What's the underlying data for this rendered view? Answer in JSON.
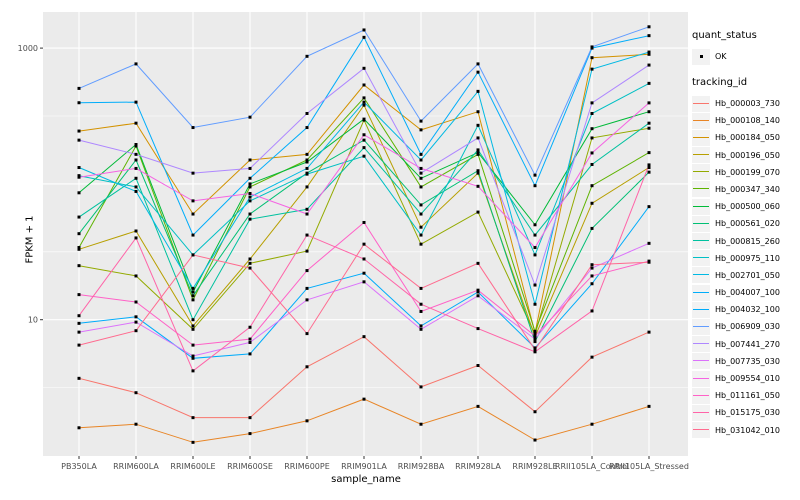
{
  "chart_data": {
    "type": "line",
    "title": "",
    "xlabel": "sample_name",
    "ylabel": "FPKM + 1",
    "y_scale": "log10",
    "y_axis_ticks": [
      10,
      1000
    ],
    "y_minor_gridlines": [
      3.162,
      31.62,
      316.2
    ],
    "ylim": [
      1,
      1900
    ],
    "grid": true,
    "legend_position": "right",
    "categories": [
      "PB350LA",
      "RRIM600LA",
      "RRIM600LE",
      "RRIM600SE",
      "RRIM600PE",
      "RRIM901LA",
      "RRIM928BA",
      "RRIM928LA",
      "RRIM928LE",
      "RRII105LA_Control",
      "RRII105LA_Stressed"
    ],
    "quant_status": {
      "title": "quant_status",
      "items": [
        {
          "label": "OK",
          "marker": "black-square-point"
        }
      ]
    },
    "tracking_id_title": "tracking_id",
    "series": [
      {
        "name": "Hb_000003_730",
        "color": "#F8766D",
        "values": [
          3.7,
          2.9,
          1.9,
          1.9,
          4.5,
          7.5,
          3.2,
          4.6,
          2.1,
          5.3,
          8.1
        ]
      },
      {
        "name": "Hb_000108_140",
        "color": "#E88526",
        "values": [
          1.6,
          1.7,
          1.25,
          1.45,
          1.8,
          2.6,
          1.7,
          2.3,
          1.3,
          1.7,
          2.3
        ]
      },
      {
        "name": "Hb_000184_050",
        "color": "#D39200",
        "values": [
          245,
          280,
          60,
          150,
          165,
          535,
          250,
          340,
          8.0,
          850,
          900
        ]
      },
      {
        "name": "Hb_000196_050",
        "color": "#B79F00",
        "values": [
          33,
          45,
          9,
          28,
          95,
          380,
          48,
          120,
          7.5,
          72,
          132
        ]
      },
      {
        "name": "Hb_000199_070",
        "color": "#93AA00",
        "values": [
          25,
          21,
          8.5,
          26,
          32,
          295,
          36,
          62,
          7.8,
          218,
          257
        ]
      },
      {
        "name": "Hb_000347_340",
        "color": "#5EB300",
        "values": [
          34,
          190,
          14,
          95,
          150,
          430,
          95,
          165,
          8.2,
          97,
          170
        ]
      },
      {
        "name": "Hb_000500_060",
        "color": "#00BA38",
        "values": [
          86,
          195,
          16,
          100,
          145,
          300,
          110,
          170,
          50,
          255,
          340
        ]
      },
      {
        "name": "Hb_000561_020",
        "color": "#00BF74",
        "values": [
          43,
          150,
          15,
          60,
          120,
          210,
          70,
          125,
          6.9,
          47,
          122
        ]
      },
      {
        "name": "Hb_000815_260",
        "color": "#00C19F",
        "values": [
          57,
          110,
          10,
          55,
          65,
          185,
          60,
          178,
          42,
          139,
          280
        ]
      },
      {
        "name": "Hb_000975_110",
        "color": "#00BFC4",
        "values": [
          115,
          95,
          30,
          75,
          118,
          160,
          42,
          270,
          30,
          330,
          550
        ]
      },
      {
        "name": "Hb_002701_050",
        "color": "#00B9E3",
        "values": [
          132,
          88,
          17,
          80,
          130,
          400,
          150,
          480,
          13,
          700,
          935
        ]
      },
      {
        "name": "Hb_004007_100",
        "color": "#00ADFA",
        "values": [
          396,
          400,
          42,
          110,
          260,
          1200,
          165,
          665,
          97,
          1000,
          1235
        ]
      },
      {
        "name": "Hb_004032_100",
        "color": "#00ACFB",
        "values": [
          9.4,
          10.5,
          5.2,
          5.6,
          17,
          22,
          9,
          16,
          6.2,
          18.4,
          68
        ]
      },
      {
        "name": "Hb_006909_030",
        "color": "#619CFF",
        "values": [
          505,
          765,
          260,
          310,
          870,
          1360,
          290,
          765,
          116,
          1020,
          1435
        ]
      },
      {
        "name": "Hb_007441_270",
        "color": "#AE87FF",
        "values": [
          210,
          165,
          120,
          130,
          330,
          710,
          120,
          218,
          18,
          395,
          750
        ]
      },
      {
        "name": "Hb_007735_030",
        "color": "#DB72FB",
        "values": [
          8.1,
          9.6,
          5.4,
          6.8,
          14,
          19,
          8.5,
          15,
          7.2,
          24,
          36.5
        ]
      },
      {
        "name": "Hb_009554_010",
        "color": "#F564E3",
        "values": [
          112,
          130,
          75,
          85,
          60,
          230,
          130,
          96,
          34,
          169,
          395
        ]
      },
      {
        "name": "Hb_011161_050",
        "color": "#FF61C7",
        "values": [
          15.3,
          13.5,
          6.5,
          7.2,
          23,
          52,
          11.5,
          16.5,
          7.6,
          21,
          27
        ]
      },
      {
        "name": "Hb_015175_030",
        "color": "#FF64A8",
        "values": [
          10.7,
          40,
          4.2,
          8.8,
          42,
          28,
          13,
          8.6,
          5.8,
          11.6,
          138
        ]
      },
      {
        "name": "Hb_031042_010",
        "color": "#FF6B8F",
        "values": [
          6.5,
          8.3,
          30,
          24,
          7.9,
          36,
          17,
          26,
          6.0,
          25.4,
          26.5
        ]
      }
    ]
  },
  "colors": {
    "panel_bg": "#EBEBEB",
    "gridline": "#FFFFFF",
    "tick_label": "#4D4D4D",
    "axis_title": "#000000",
    "legend_key_bg": "#F2F2F2",
    "point": "#000000"
  }
}
